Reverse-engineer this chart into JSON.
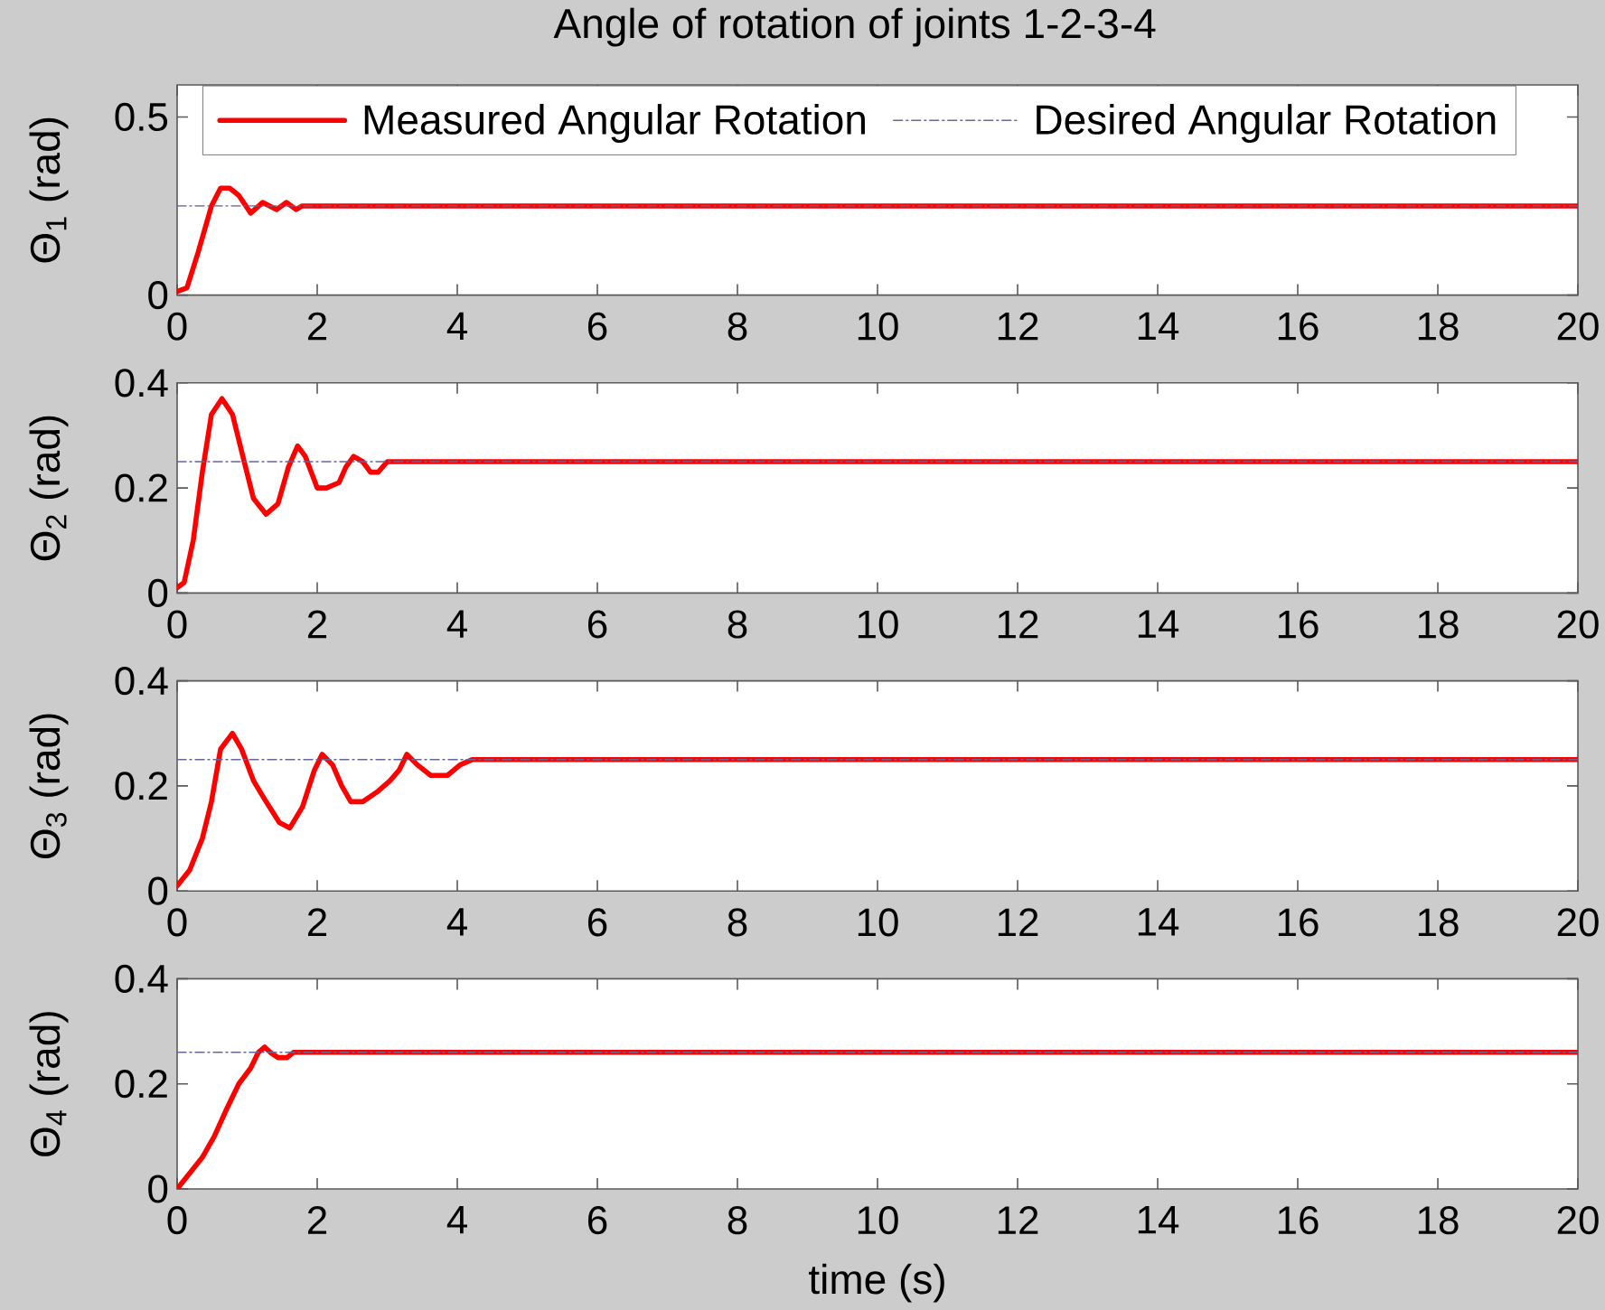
{
  "chart_data": [
    {
      "type": "line",
      "title": "Angle of rotation of joints 1-2-3-4",
      "ylabel": "Θ$_{1}$ (rad)",
      "xlim": [
        0,
        20
      ],
      "ylim": [
        0,
        0.59
      ],
      "xticks": [
        0,
        2,
        4,
        6,
        8,
        10,
        12,
        14,
        16,
        18,
        20
      ],
      "yticks": [
        0,
        0.5
      ],
      "legend": "top right",
      "series": [
        {
          "name": "Measured Angular Rotation",
          "color": "#ff0000",
          "line_style": "solid",
          "x": [
            0,
            0.14,
            0.3,
            0.49,
            0.62,
            0.75,
            0.88,
            1.05,
            1.22,
            1.42,
            1.56,
            1.7,
            1.78,
            20
          ],
          "values": [
            0.01,
            0.02,
            0.12,
            0.25,
            0.3,
            0.3,
            0.28,
            0.23,
            0.26,
            0.24,
            0.26,
            0.24,
            0.25,
            0.25
          ]
        },
        {
          "name": "Desired Angular Rotation",
          "color": "#666699",
          "line_style": "dashdot",
          "x": [
            0,
            20
          ],
          "values": [
            0.25,
            0.25
          ]
        }
      ]
    },
    {
      "type": "line",
      "ylabel": "Θ$_{2}$ (rad)",
      "xlim": [
        0,
        20
      ],
      "ylim": [
        0,
        0.4
      ],
      "xticks": [
        0,
        2,
        4,
        6,
        8,
        10,
        12,
        14,
        16,
        18,
        20
      ],
      "yticks": [
        0,
        0.2,
        0.4
      ],
      "series": [
        {
          "color": "#ff0000",
          "line_style": "solid",
          "x": [
            0,
            0.1,
            0.23,
            0.36,
            0.49,
            0.64,
            0.79,
            0.92,
            1.09,
            1.27,
            1.44,
            1.59,
            1.72,
            1.83,
            2.0,
            2.13,
            2.31,
            2.41,
            2.52,
            2.65,
            2.76,
            2.87,
            3.0,
            20
          ],
          "values": [
            0.01,
            0.02,
            0.1,
            0.23,
            0.34,
            0.37,
            0.34,
            0.27,
            0.18,
            0.15,
            0.17,
            0.24,
            0.28,
            0.26,
            0.2,
            0.2,
            0.21,
            0.24,
            0.26,
            0.25,
            0.23,
            0.23,
            0.25,
            0.25
          ]
        },
        {
          "color": "#666699",
          "line_style": "dashdot",
          "x": [
            0,
            20
          ],
          "values": [
            0.25,
            0.25
          ]
        }
      ]
    },
    {
      "type": "line",
      "ylabel": "Θ$_{3}$ (rad)",
      "xlim": [
        0,
        20
      ],
      "ylim": [
        0,
        0.4
      ],
      "xticks": [
        0,
        2,
        4,
        6,
        8,
        10,
        12,
        14,
        16,
        18,
        20
      ],
      "yticks": [
        0,
        0.2,
        0.4
      ],
      "series": [
        {
          "color": "#ff0000",
          "line_style": "solid",
          "x": [
            0,
            0.18,
            0.36,
            0.49,
            0.62,
            0.79,
            0.92,
            1.09,
            1.27,
            1.46,
            1.61,
            1.79,
            1.96,
            2.07,
            2.22,
            2.35,
            2.48,
            2.65,
            2.87,
            3.04,
            3.17,
            3.28,
            3.43,
            3.62,
            3.86,
            4.04,
            4.21,
            20
          ],
          "values": [
            0.01,
            0.04,
            0.1,
            0.17,
            0.27,
            0.3,
            0.27,
            0.21,
            0.17,
            0.13,
            0.12,
            0.16,
            0.23,
            0.26,
            0.24,
            0.2,
            0.17,
            0.17,
            0.19,
            0.21,
            0.23,
            0.26,
            0.24,
            0.22,
            0.22,
            0.24,
            0.25,
            0.25
          ]
        },
        {
          "color": "#666699",
          "line_style": "dashdot",
          "x": [
            0,
            20
          ],
          "values": [
            0.25,
            0.25
          ]
        }
      ]
    },
    {
      "type": "line",
      "xlabel": "time (s)",
      "ylabel": "Θ$_{4}$ (rad)",
      "xlim": [
        0,
        20
      ],
      "ylim": [
        0,
        0.4
      ],
      "xticks": [
        0,
        2,
        4,
        6,
        8,
        10,
        12,
        14,
        16,
        18,
        20
      ],
      "yticks": [
        0,
        0.2,
        0.4
      ],
      "series": [
        {
          "color": "#ff0000",
          "line_style": "solid",
          "x": [
            0,
            0.18,
            0.36,
            0.53,
            0.7,
            0.88,
            1.05,
            1.16,
            1.25,
            1.33,
            1.44,
            1.57,
            1.66,
            20
          ],
          "values": [
            0,
            0.03,
            0.06,
            0.1,
            0.15,
            0.2,
            0.23,
            0.26,
            0.27,
            0.26,
            0.25,
            0.25,
            0.26,
            0.26
          ]
        },
        {
          "color": "#666699",
          "line_style": "dashdot",
          "x": [
            0,
            20
          ],
          "values": [
            0.26,
            0.26
          ]
        }
      ]
    }
  ]
}
